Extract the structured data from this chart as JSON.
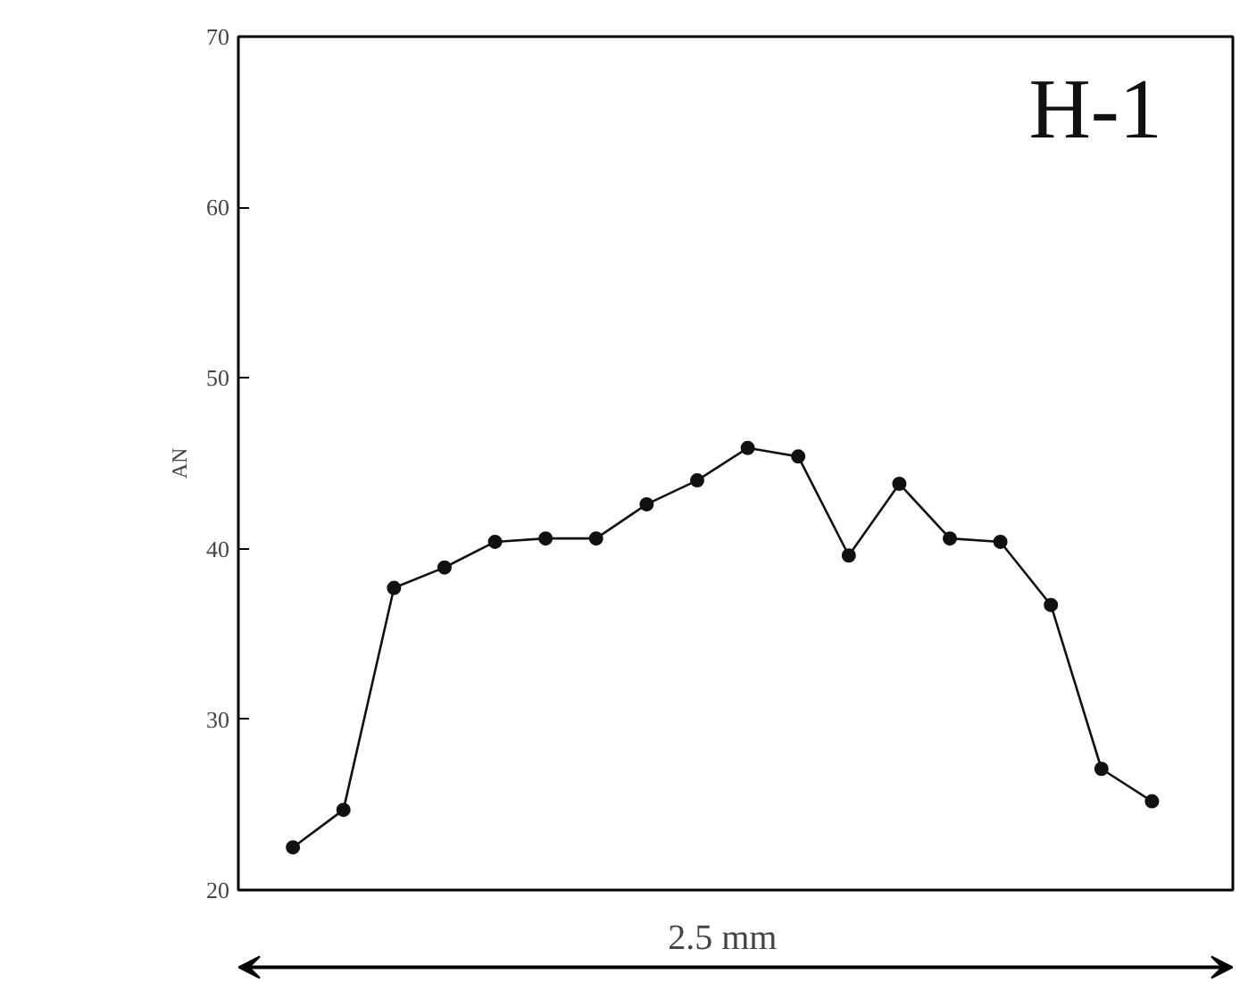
{
  "chart_data": {
    "type": "line",
    "ylabel": "AN",
    "categories": [
      null,
      null,
      null,
      null,
      null,
      null,
      null,
      null,
      null,
      null,
      null,
      null,
      null,
      null,
      null,
      null,
      null,
      null
    ],
    "values": [
      22.5,
      24.7,
      37.7,
      38.9,
      40.4,
      40.6,
      40.6,
      42.6,
      44.0,
      45.9,
      45.4,
      39.6,
      43.8,
      40.6,
      40.4,
      36.7,
      27.1,
      25.2
    ],
    "color": "#111111",
    "marker": "circle",
    "line_style": "solid",
    "ylim": [
      20,
      70
    ],
    "yticks": [
      20,
      30,
      40,
      50,
      60,
      70
    ],
    "grid": false,
    "tick_labels": "y",
    "annotations": [
      "H-1",
      "2.5 mm"
    ]
  }
}
